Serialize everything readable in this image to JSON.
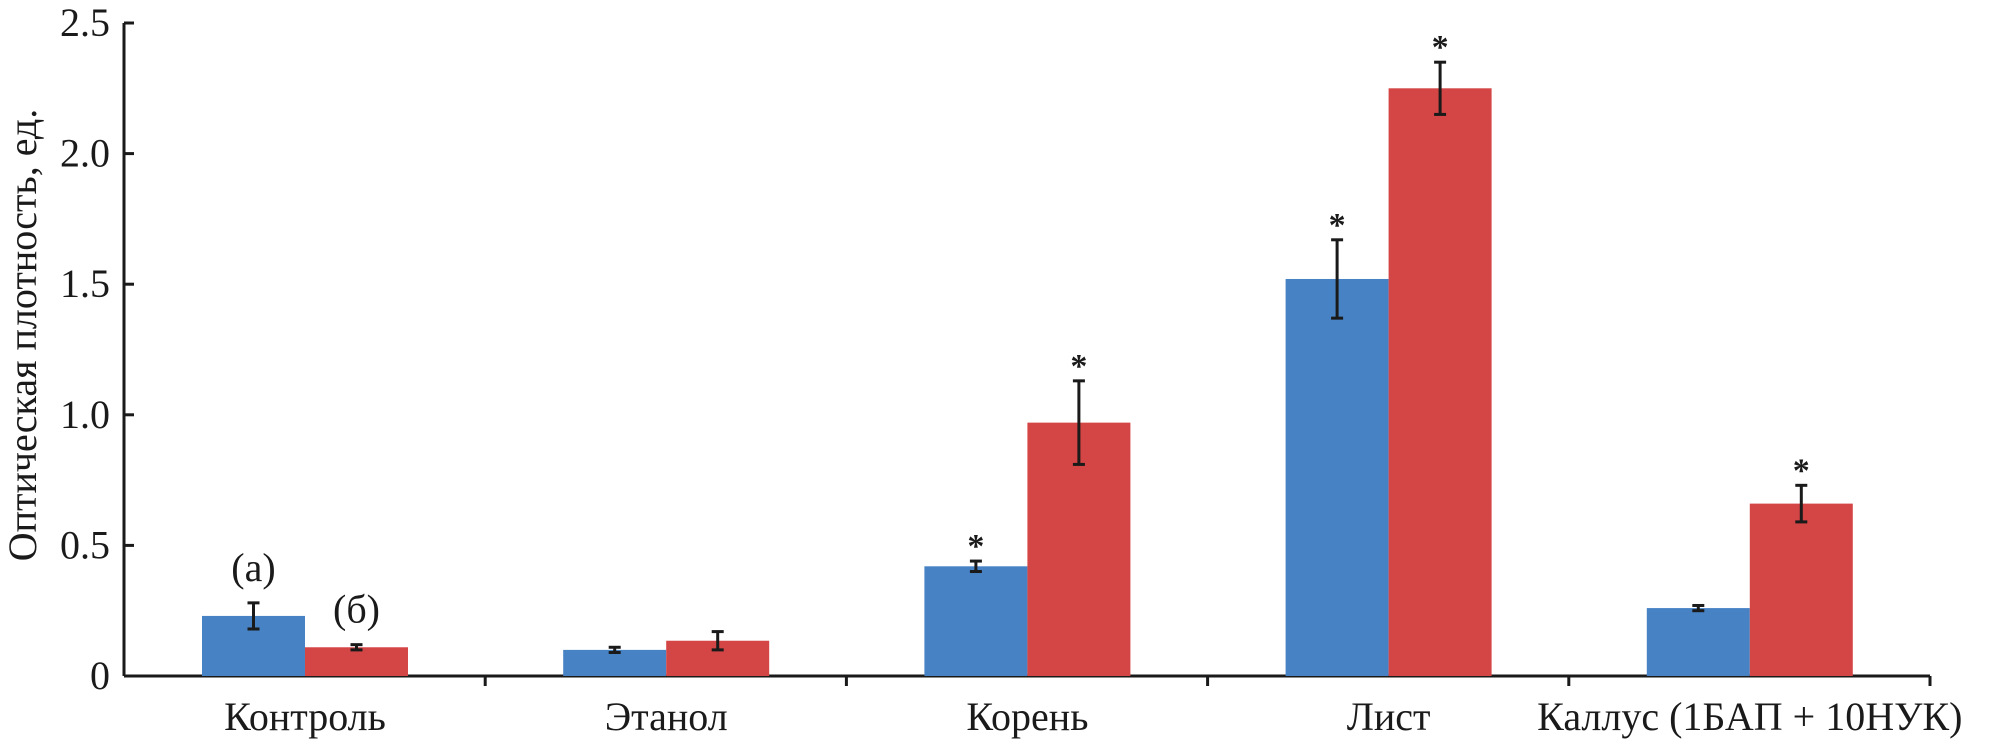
{
  "chart_data": {
    "type": "bar",
    "title": "",
    "xlabel": "",
    "ylabel": "Оптическая плотность, ед.",
    "ylim": [
      0,
      2.5
    ],
    "yticks": [
      0,
      0.5,
      1.0,
      1.5,
      2.0,
      2.5
    ],
    "ytick_labels": [
      "0",
      "0.5",
      "1.0",
      "1.5",
      "2.0",
      "2.5"
    ],
    "categories": [
      "Контроль",
      "Этанол",
      "Корень",
      "Лист",
      "Каллус (1БАП + 10НУК)"
    ],
    "series": [
      {
        "label": "(а)",
        "color": "#4682c4",
        "values": [
          0.23,
          0.1,
          0.42,
          1.52,
          0.26
        ],
        "errors": [
          0.05,
          0.01,
          0.02,
          0.15,
          0.01
        ],
        "significant": [
          false,
          false,
          true,
          true,
          false
        ]
      },
      {
        "label": "(б)",
        "color": "#d44545",
        "values": [
          0.11,
          0.135,
          0.97,
          2.25,
          0.66
        ],
        "errors": [
          0.01,
          0.035,
          0.16,
          0.1,
          0.07
        ],
        "significant": [
          false,
          false,
          true,
          true,
          true
        ]
      }
    ],
    "significance_marker": "*",
    "grid": false,
    "legend": "none"
  }
}
